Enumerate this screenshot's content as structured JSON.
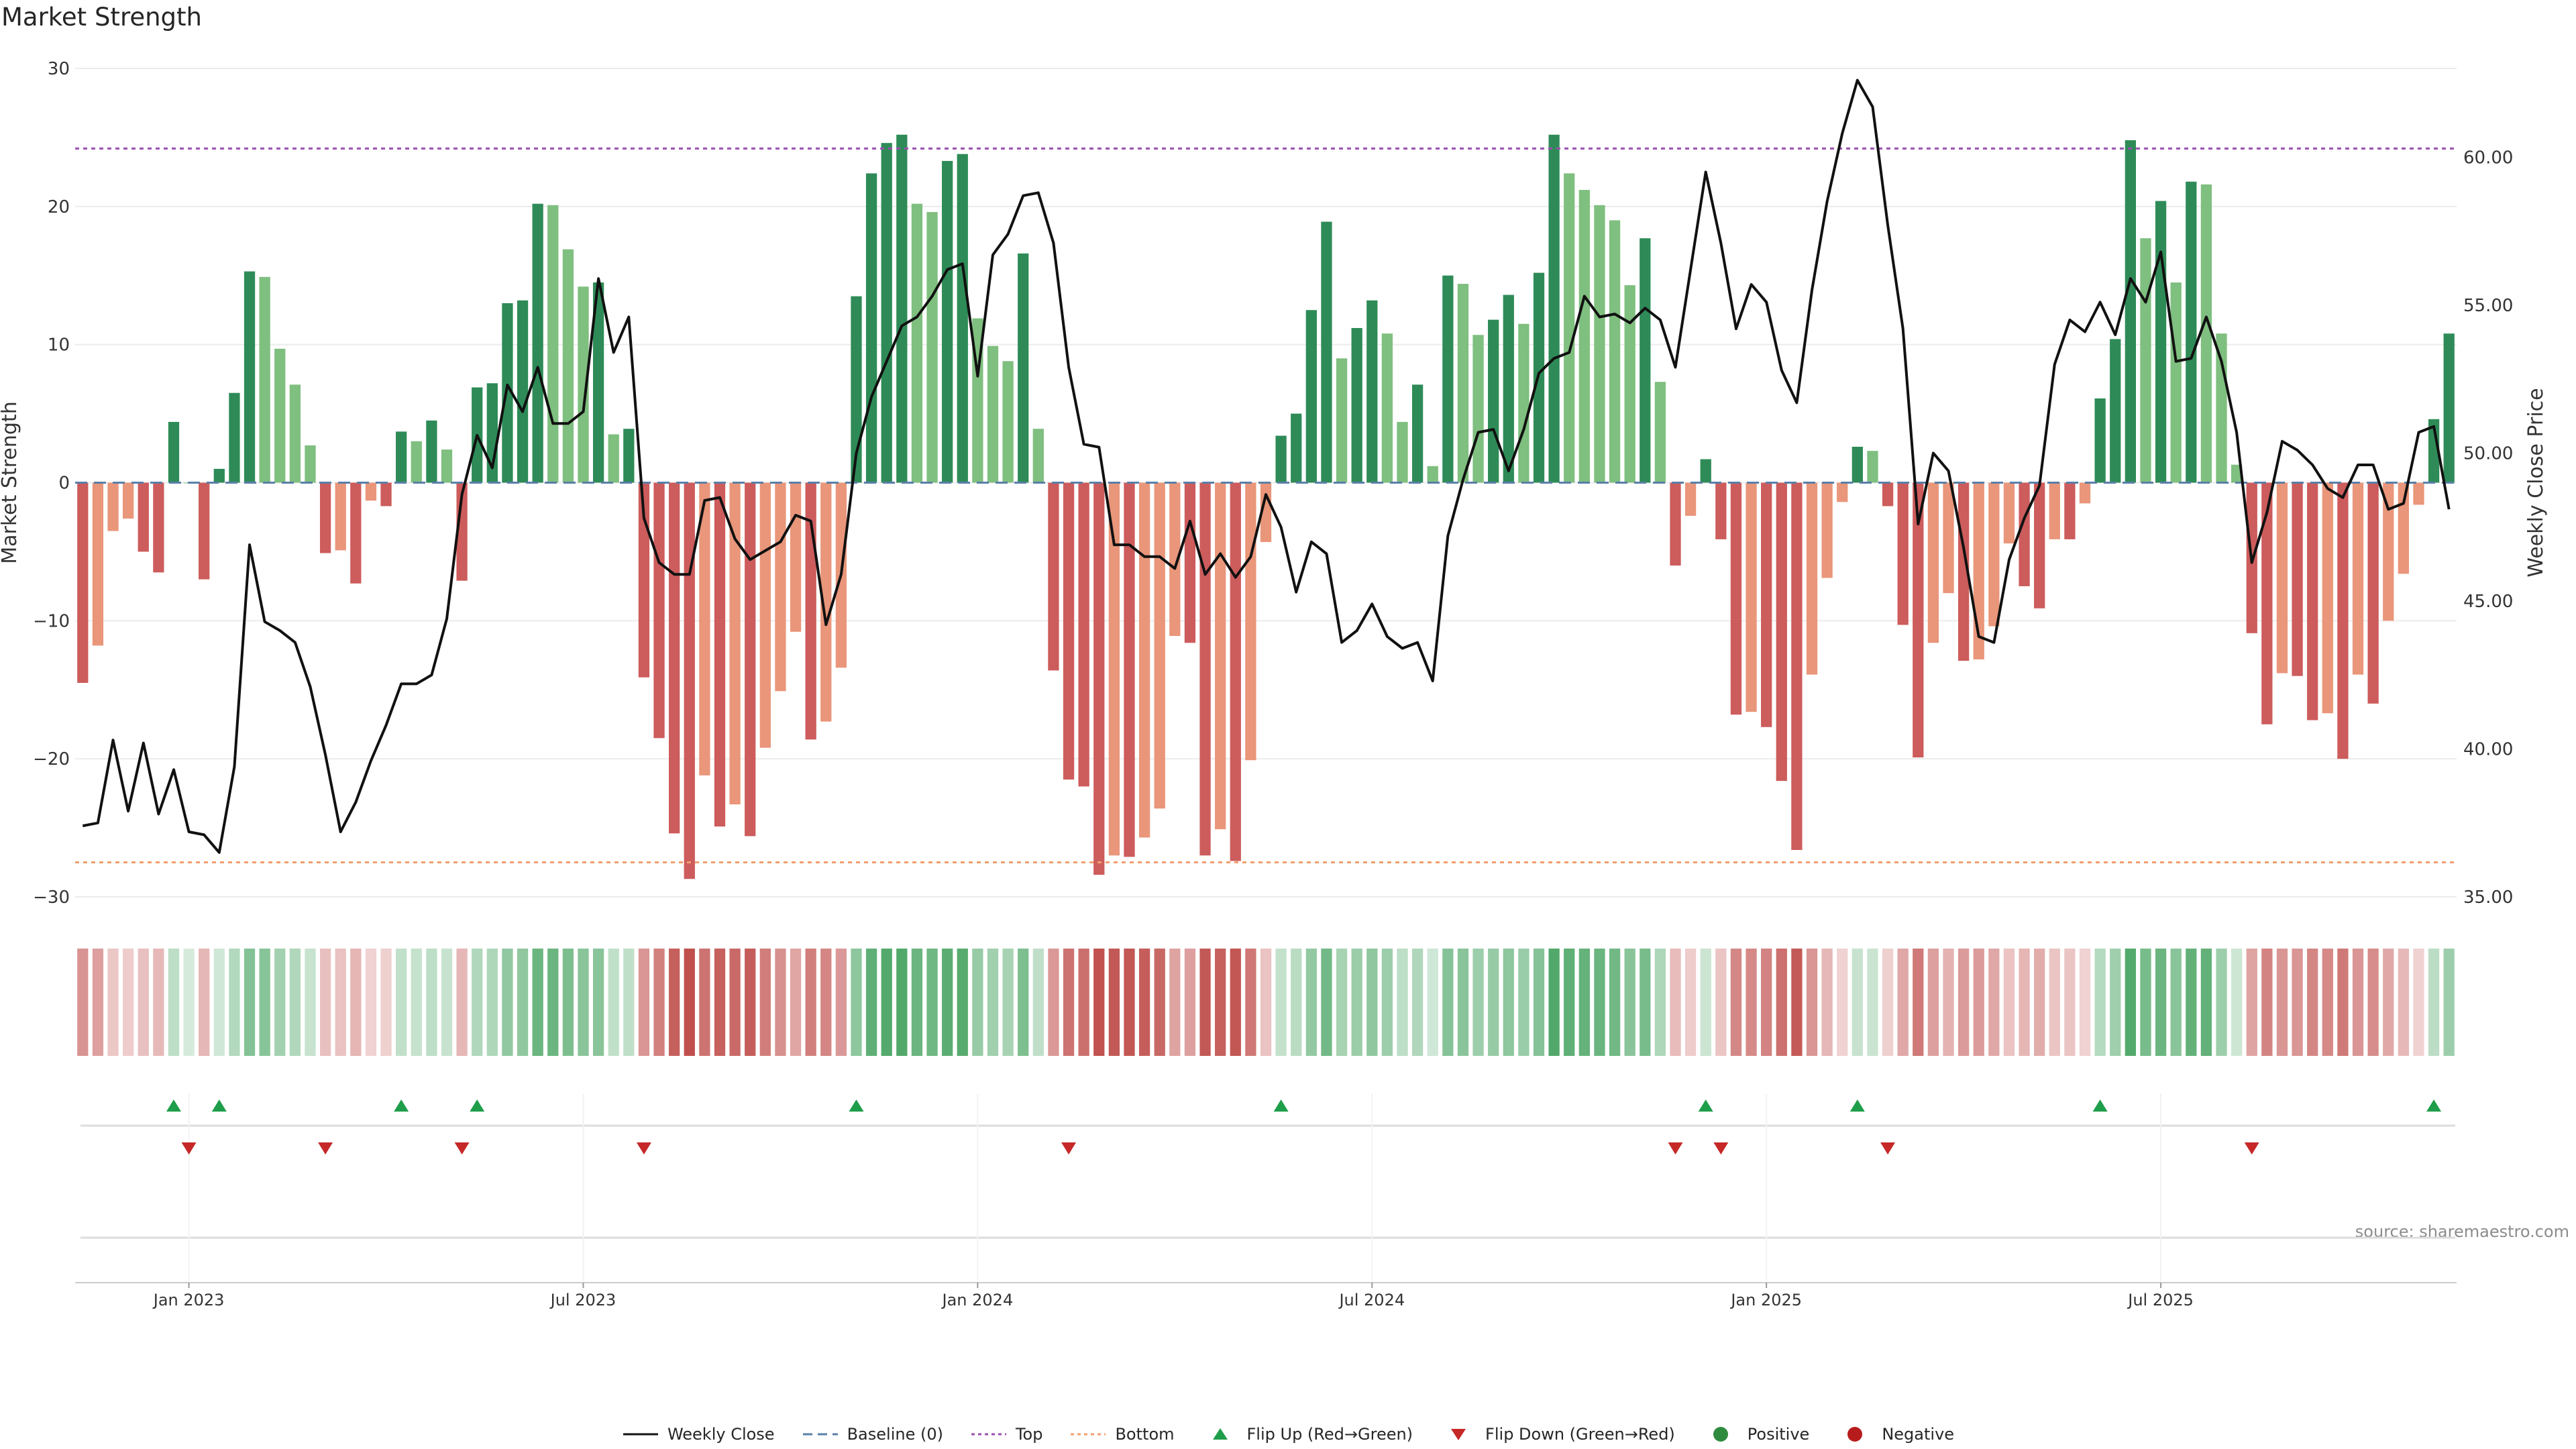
{
  "chart_data": {
    "type": "bar",
    "title": "Market Strength",
    "ylabel_left": "Market Strength",
    "ylabel_right": "Weekly Close Price",
    "source_note": "source: sharemaestro.com",
    "ylim_left": [
      -30,
      30
    ],
    "ylim_right": [
      35,
      63
    ],
    "left_ticks": [
      30,
      20,
      10,
      0,
      -10,
      -20,
      -30
    ],
    "left_tick_labels": [
      "30",
      "20",
      "10",
      "0",
      "−10",
      "−20",
      "−30"
    ],
    "right_ticks": [
      60,
      55,
      50,
      45,
      40,
      35
    ],
    "right_tick_labels": [
      "60.00",
      "55.00",
      "50.00",
      "45.00",
      "40.00",
      "35.00"
    ],
    "x_tick_labels": [
      "Jan 2023",
      "Jul 2023",
      "Jan 2024",
      "Jul 2024",
      "Jan 2025",
      "Jul 2025"
    ],
    "x_tick_weeks": [
      7.5,
      33.5,
      59.5,
      85.5,
      111.5,
      137.5
    ],
    "top_line": 24.2,
    "bottom_line": -27.5,
    "baseline": 0,
    "strength": [
      -14.5,
      -11.8,
      -3.5,
      -2.6,
      -5,
      -6.5,
      4.4,
      0,
      -7,
      1,
      6.5,
      15.3,
      14.9,
      9.7,
      7.1,
      2.7,
      -5.1,
      -4.9,
      -7.3,
      -1.3,
      -1.7,
      3.7,
      3,
      4.5,
      2.4,
      -7.1,
      6.9,
      7.2,
      13,
      13.2,
      20.2,
      20.1,
      16.9,
      14.2,
      14.5,
      3.5,
      3.9,
      -14.1,
      -18.5,
      -25.4,
      -28.7,
      -21.2,
      -24.9,
      -23.3,
      -25.6,
      -19.2,
      -15.1,
      -10.8,
      -18.6,
      -17.3,
      -13.4,
      13.5,
      22.4,
      24.6,
      25.2,
      20.2,
      19.6,
      23.3,
      23.8,
      11.9,
      9.9,
      8.8,
      16.6,
      3.9,
      -13.6,
      -21.5,
      -22,
      -28.4,
      -27,
      -27.1,
      -25.7,
      -23.6,
      -11.1,
      -11.6,
      -27,
      -25.1,
      -27.4,
      -20.1,
      -4.3,
      3.4,
      5,
      12.5,
      18.9,
      9,
      11.2,
      13.2,
      10.8,
      4.4,
      7.1,
      1.2,
      15,
      14.4,
      10.7,
      11.8,
      13.6,
      11.5,
      15.2,
      25.2,
      22.4,
      21.2,
      20.1,
      19,
      14.3,
      17.7,
      7.3,
      -6,
      -2.4,
      1.7,
      -4.1,
      -16.8,
      -16.6,
      -17.7,
      -21.6,
      -26.6,
      -13.9,
      -6.9,
      -1.4,
      2.6,
      2.3,
      -1.7,
      -10.3,
      -19.9,
      -11.6,
      -8,
      -12.9,
      -12.8,
      -10.4,
      -4.4,
      -7.5,
      -9.1,
      -4.1,
      -4.1,
      -1.5,
      6.1,
      10.4,
      24.8,
      17.7,
      20.4,
      14.5,
      21.8,
      21.6,
      10.8,
      1.3,
      -10.9,
      -17.5,
      -13.8,
      -14,
      -17.2,
      -16.7,
      -20,
      -13.9,
      -16,
      -10,
      -6.6,
      -1.6,
      4.6,
      10.8
    ],
    "weekly_close": [
      37.4,
      37.5,
      40.3,
      37.9,
      40.2,
      37.8,
      39.3,
      37.2,
      37.1,
      36.5,
      39.4,
      46.9,
      44.3,
      44,
      43.6,
      42.1,
      39.8,
      37.2,
      38.2,
      39.6,
      40.8,
      42.2,
      42.2,
      42.5,
      44.4,
      48.6,
      50.6,
      49.5,
      52.3,
      51.4,
      52.9,
      51,
      51,
      51.4,
      55.9,
      53.4,
      54.6,
      47.8,
      46.3,
      45.9,
      45.9,
      48.4,
      48.5,
      47.1,
      46.4,
      46.7,
      47,
      47.9,
      47.7,
      44.2,
      45.9,
      50,
      51.9,
      53.1,
      54.3,
      54.6,
      55.3,
      56.2,
      56.4,
      52.6,
      56.7,
      57.4,
      58.7,
      58.8,
      57.1,
      52.9,
      50.3,
      50.2,
      46.9,
      46.9,
      46.5,
      46.5,
      46.1,
      47.7,
      45.9,
      46.6,
      45.8,
      46.5,
      48.6,
      47.5,
      45.3,
      47,
      46.6,
      43.6,
      44,
      44.9,
      43.8,
      43.4,
      43.6,
      42.3,
      47.2,
      49.1,
      50.7,
      50.8,
      49.4,
      50.8,
      52.7,
      53.2,
      53.4,
      55.3,
      54.6,
      54.7,
      54.4,
      54.9,
      54.5,
      52.9,
      56.2,
      59.5,
      57.1,
      54.2,
      55.7,
      55.1,
      52.8,
      51.7,
      55.5,
      58.5,
      60.8,
      62.6,
      61.7,
      57.7,
      54.2,
      47.6,
      50,
      49.4,
      46.8,
      43.8,
      43.6,
      46.4,
      47.8,
      48.9,
      53,
      54.5,
      54.1,
      55.1,
      54,
      55.9,
      55.1,
      56.8,
      53.1,
      53.2,
      54.6,
      53.1,
      50.7,
      46.3,
      48,
      50.4,
      50.1,
      49.6,
      48.8,
      48.5,
      49.6,
      49.6,
      48.1,
      48.3,
      50.7,
      50.9,
      48.1
    ],
    "flip_up_weeks": [
      6,
      9,
      21,
      26,
      51,
      79,
      107,
      117,
      133,
      155
    ],
    "flip_down_weeks": [
      7,
      16,
      25,
      37,
      65,
      105,
      108,
      119,
      143
    ],
    "legend": [
      {
        "label": "Weekly Close",
        "symbol": "solid-line",
        "color": "#111111"
      },
      {
        "label": "Baseline (0)",
        "symbol": "dashed-line",
        "color": "#5a7fa8"
      },
      {
        "label": "Top",
        "symbol": "dotted-line",
        "color": "#9b4fb0"
      },
      {
        "label": "Bottom",
        "symbol": "dotted-line",
        "color": "#f0a070"
      },
      {
        "label": "Flip Up (Red→Green)",
        "symbol": "triangle-up",
        "color": "#1e9e4a"
      },
      {
        "label": "Flip Down (Green→Red)",
        "symbol": "triangle-down",
        "color": "#c62828"
      },
      {
        "label": "Positive",
        "symbol": "circle",
        "color": "#2e8b3e"
      },
      {
        "label": "Negative",
        "symbol": "circle",
        "color": "#b71c1c"
      }
    ],
    "colors": {
      "pos_strong": "#2e8b57",
      "pos_weak": "#7fbf7f",
      "neg_strong": "#cd5c5c",
      "neg_weak": "#e9967a",
      "heat_pos": "#3f9f5a",
      "heat_neg": "#c0504d",
      "price_line": "#111111",
      "baseline": "#5a7fa8",
      "top": "#9b4fb0",
      "bottom": "#f0a070",
      "flip_up": "#1e9e4a",
      "flip_down": "#c62828",
      "axis_text": "#333333",
      "grid": "#ececec"
    }
  }
}
